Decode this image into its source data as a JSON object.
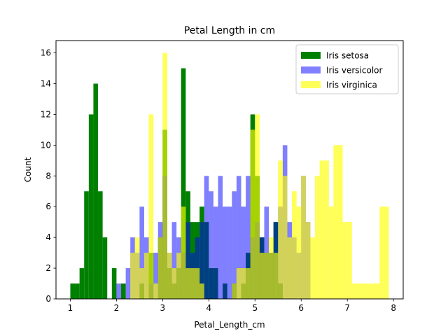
{
  "chart_data": {
    "type": "bar",
    "title": "Petal Length in cm",
    "xlabel": "Petal_Length_cm",
    "ylabel": "Count",
    "xlim": [
      0.69,
      8.21
    ],
    "ylim": [
      0,
      16.8
    ],
    "xticks": [
      1,
      2,
      3,
      4,
      5,
      6,
      7,
      8
    ],
    "yticks": [
      0,
      2,
      4,
      6,
      8,
      10,
      12,
      14,
      16
    ],
    "grid": false,
    "legend_position": "top-right",
    "bin_width": 0.1,
    "series": [
      {
        "name": "Iris setosa",
        "color": "#008000",
        "opacity": 1.0,
        "bin_start": [
          1.0,
          1.1,
          1.2,
          1.3,
          1.4,
          1.5,
          1.6,
          1.7,
          1.9,
          2.1,
          2.5,
          2.7,
          2.9,
          3.0,
          3.1,
          3.2,
          3.3,
          3.4,
          3.5,
          3.6,
          3.7,
          3.8,
          3.9,
          4.0,
          4.1,
          4.3,
          4.5,
          4.7,
          4.8,
          4.9,
          5.0,
          5.1,
          5.2,
          5.3,
          5.4,
          5.5
        ],
        "counts": [
          1,
          1,
          2,
          7,
          12,
          14,
          7,
          4,
          2,
          1,
          1,
          3,
          4,
          11,
          2,
          1,
          2,
          15,
          7,
          5,
          5,
          6,
          5,
          2,
          2,
          1,
          1,
          1,
          3,
          12,
          8,
          4,
          3,
          3,
          5,
          1
        ]
      },
      {
        "name": "Iris versicolor",
        "color": "#0000ff",
        "opacity": 0.5,
        "bin_start": [
          2.0,
          2.2,
          2.3,
          2.4,
          2.5,
          2.6,
          2.7,
          2.8,
          2.9,
          3.0,
          3.1,
          3.2,
          3.3,
          3.4,
          3.5,
          3.6,
          3.7,
          3.8,
          3.9,
          4.0,
          4.1,
          4.2,
          4.3,
          4.4,
          4.5,
          4.6,
          4.7,
          4.8,
          4.9,
          5.0,
          5.1,
          5.2,
          5.3,
          5.4,
          5.5,
          5.6,
          5.7,
          5.8,
          5.9,
          6.0,
          6.1
        ],
        "counts": [
          1,
          2,
          4,
          3,
          6,
          4,
          1,
          3,
          5,
          8,
          3,
          5,
          4,
          3,
          5,
          3,
          4,
          5,
          8,
          7,
          6,
          8,
          6,
          6,
          7,
          8,
          6,
          8,
          4,
          5,
          4,
          6,
          3,
          5,
          6,
          10,
          5,
          4,
          3,
          8,
          5
        ]
      },
      {
        "name": "Iris virginica",
        "color": "#ffff00",
        "opacity": 0.65,
        "bin_start": [
          2.3,
          2.4,
          2.5,
          2.6,
          2.7,
          2.8,
          2.9,
          3.0,
          3.1,
          3.2,
          3.3,
          3.4,
          3.5,
          3.6,
          3.7,
          3.8,
          4.5,
          4.6,
          4.7,
          4.8,
          4.9,
          5.0,
          5.1,
          5.2,
          5.3,
          5.4,
          5.5,
          5.6,
          5.7,
          5.8,
          5.9,
          6.0,
          6.1,
          6.2,
          6.3,
          6.4,
          6.5,
          6.6,
          6.7,
          6.8,
          6.9,
          7.0,
          7.1,
          7.2,
          7.3,
          7.4,
          7.5,
          7.6,
          7.7,
          7.8
        ],
        "counts": [
          3,
          4,
          2,
          3,
          12,
          1,
          4,
          16,
          3,
          2,
          3,
          6,
          2,
          2,
          2,
          1,
          1,
          2,
          2,
          2,
          11,
          12,
          3,
          3,
          4,
          3,
          9,
          8,
          4,
          7,
          6,
          8,
          5,
          4,
          8,
          9,
          9,
          6,
          10,
          10,
          5,
          5,
          1,
          1,
          1,
          1,
          1,
          1,
          6,
          6
        ]
      }
    ]
  }
}
